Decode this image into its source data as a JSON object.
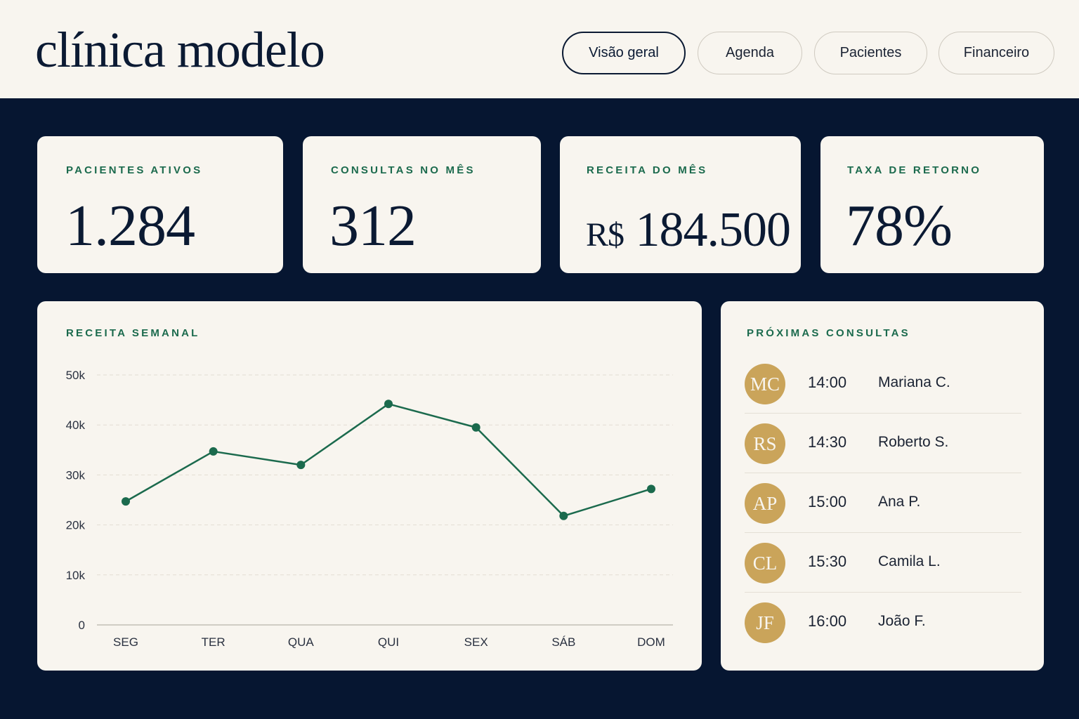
{
  "app": {
    "brand": "clínica modelo"
  },
  "nav": {
    "tabs": [
      {
        "label": "Visão geral",
        "active": true
      },
      {
        "label": "Agenda",
        "active": false
      },
      {
        "label": "Pacientes",
        "active": false
      },
      {
        "label": "Financeiro",
        "active": false
      }
    ]
  },
  "kpis": [
    {
      "label": "PACIENTES ATIVOS",
      "value": "1.284"
    },
    {
      "label": "CONSULTAS NO MÊS",
      "value": "312"
    },
    {
      "label": "RECEITA DO MÊS",
      "currency": "R$",
      "value": "184.500"
    },
    {
      "label": "TAXA DE RETORNO",
      "value": "78%"
    }
  ],
  "weekly_revenue": {
    "label": "RECEITA SEMANAL"
  },
  "chart_data": {
    "type": "line",
    "title": "RECEITA SEMANAL",
    "xlabel": "",
    "ylabel": "",
    "categories": [
      "SEG",
      "TER",
      "QUA",
      "QUI",
      "SEX",
      "SÁB",
      "DOM"
    ],
    "series": [
      {
        "values": [
          24700,
          34700,
          32000,
          44200,
          39500,
          21800,
          27200
        ]
      }
    ],
    "ylim": [
      0,
      50000
    ],
    "yticks": [
      {
        "value": 0,
        "label": "0"
      },
      {
        "value": 10000,
        "label": "10k"
      },
      {
        "value": 20000,
        "label": "20k"
      },
      {
        "value": 30000,
        "label": "30k"
      },
      {
        "value": 40000,
        "label": "40k"
      },
      {
        "value": 50000,
        "label": "50k"
      }
    ],
    "grid": true,
    "color": "#1b6a4d"
  },
  "appointments": {
    "label": "PRÓXIMAS CONSULTAS",
    "items": [
      {
        "initials": "MC",
        "time": "14:00",
        "name": "Mariana C."
      },
      {
        "initials": "RS",
        "time": "14:30",
        "name": "Roberto S."
      },
      {
        "initials": "AP",
        "time": "15:00",
        "name": "Ana P."
      },
      {
        "initials": "CL",
        "time": "15:30",
        "name": "Camila L."
      },
      {
        "initials": "JF",
        "time": "16:00",
        "name": "João F."
      }
    ]
  },
  "colors": {
    "background": "#061631",
    "card": "#f8f5ef",
    "accent_green": "#1b6a4d",
    "avatar_gold": "#caa45a",
    "ink": "#0b1a33"
  }
}
